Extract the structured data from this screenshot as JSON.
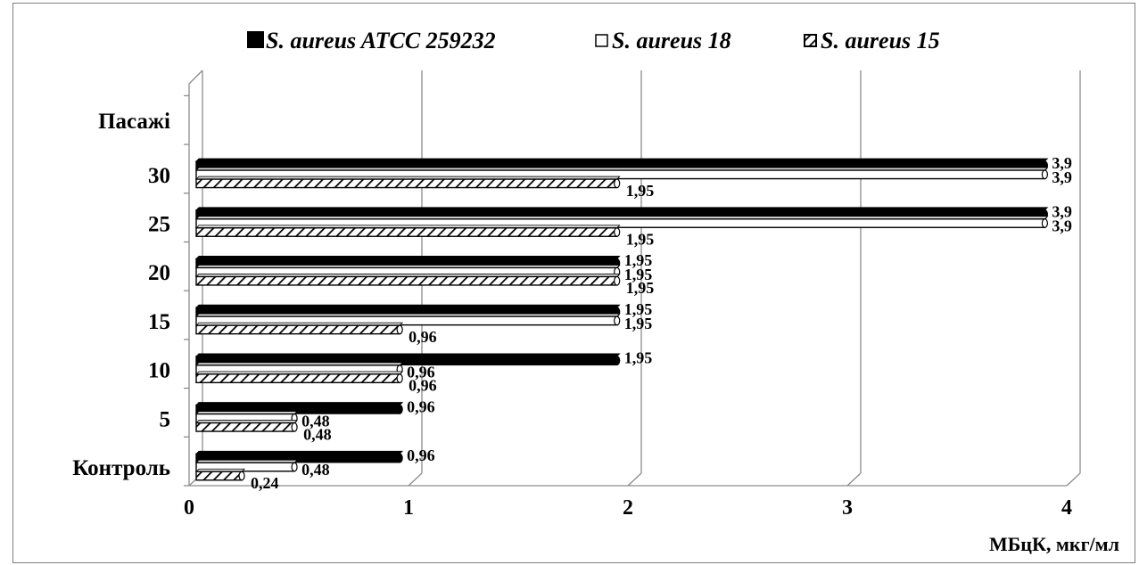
{
  "chart_data": {
    "type": "bar",
    "orientation": "horizontal",
    "categories": [
      "Контроль",
      "5",
      "10",
      "15",
      "20",
      "25",
      "30"
    ],
    "category_axis_title": "Пасажі",
    "series": [
      {
        "name": "S. aureus ATCC 259232",
        "pattern": "solid",
        "color": "#000000",
        "values": [
          0.96,
          0.96,
          1.95,
          1.95,
          1.95,
          3.9,
          3.9
        ],
        "labels": [
          "0,96",
          "0,96",
          "1,95",
          "1,95",
          "1,95",
          "3,9",
          "3,9"
        ]
      },
      {
        "name": "S. aureus 18",
        "pattern": "hollow",
        "color": "#ffffff",
        "values": [
          0.48,
          0.48,
          0.96,
          1.95,
          1.95,
          3.9,
          3.9
        ],
        "labels": [
          "0,48",
          "0,48",
          "0,96",
          "1,95",
          "1,95",
          "3,9",
          "3,9"
        ]
      },
      {
        "name": "S. aureus 15",
        "pattern": "hatched",
        "color": "#000000",
        "values": [
          0.24,
          0.48,
          0.96,
          0.96,
          1.95,
          1.95,
          1.95
        ],
        "labels": [
          "0,24",
          "0,48",
          "0,96",
          "0,96",
          "1,95",
          "1,95",
          "1,95"
        ]
      }
    ],
    "x_ticks": [
      "0",
      "1",
      "2",
      "3",
      "4"
    ],
    "xlim": [
      0,
      4
    ],
    "xlabel": "МБцК, мкг/мл",
    "legend": "top",
    "grid": true,
    "style": "3d-bars"
  }
}
